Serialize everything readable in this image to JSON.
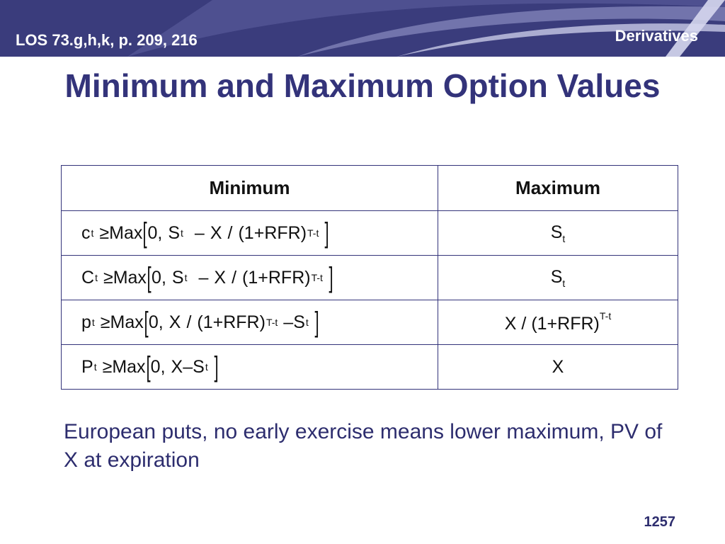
{
  "header": {
    "los": "LOS 73.g,h,k, p. 209, 216",
    "section": "Derivatives"
  },
  "title": "Minimum and Maximum Option Values",
  "table": {
    "col_min": "Minimum",
    "col_max": "Maximum",
    "rows": [
      {
        "min": {
          "sym": "c",
          "sub": "t",
          "ge": "≥",
          "max_word": "Max",
          "zero": "0,",
          "S": "S",
          "S_sub": "t",
          "minus": "–",
          "X": "X",
          "slash": "/",
          "paren": "(1",
          "plus": "+",
          "rfr": "RFR)",
          "exp": "T-t"
        },
        "max": {
          "main": "S",
          "sub": "t"
        }
      },
      {
        "min": {
          "sym": "C",
          "sub": "t",
          "ge": "≥",
          "max_word": "Max",
          "zero": "0,",
          "S": "S",
          "S_sub": "t",
          "minus": "–",
          "X": "X",
          "slash": "/",
          "paren": "(1",
          "plus": "+",
          "rfr": "RFR)",
          "exp": "T-t"
        },
        "max": {
          "main": "S",
          "sub": "t"
        }
      },
      {
        "min": {
          "sym": "p",
          "sub": "t",
          "ge": "≥",
          "max_word": "Max",
          "zero": "0,",
          "X": "X",
          "slash": "/",
          "paren": "(1",
          "plus": "+",
          "rfr": "RFR)",
          "exp": "T-t",
          "minus": "–",
          "S": "S",
          "S_sub": "t"
        },
        "max": {
          "X": "X",
          "slash": "/",
          "paren": "(1",
          "plus": "+",
          "rfr": "RFR)",
          "exp": "T-t"
        }
      },
      {
        "min": {
          "sym": "P",
          "sub": "t",
          "ge": "≥",
          "max_word": "Max",
          "zero": "0,",
          "X": "X",
          "minus": "–",
          "S": "S",
          "S_sub": "t"
        },
        "max": {
          "main": "X"
        }
      }
    ]
  },
  "bullet": "European puts, no early exercise means lower maximum, PV of X at expiration",
  "page_number": "1257",
  "colors": {
    "banner": "#3a3c7c",
    "title": "#33337a",
    "body_text": "#2d2d6e"
  }
}
